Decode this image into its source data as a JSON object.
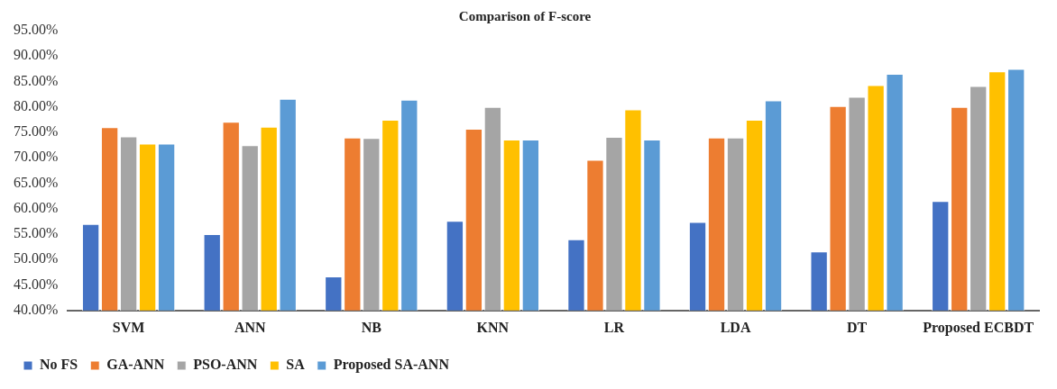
{
  "chart_data": {
    "type": "bar",
    "title": "Comparison of F-score",
    "categories": [
      "SVM",
      "ANN",
      "NB",
      "KNN",
      "LR",
      "LDA",
      "DT",
      "Proposed ECBDT"
    ],
    "series": [
      {
        "name": "No FS",
        "color": "#4472c4",
        "values": [
          57.0,
          55.0,
          46.7,
          57.6,
          54.0,
          57.4,
          51.6,
          61.5
        ]
      },
      {
        "name": "GA-ANN",
        "color": "#ed7d31",
        "values": [
          76.0,
          77.1,
          74.0,
          75.7,
          69.6,
          74.0,
          80.2,
          80.0
        ]
      },
      {
        "name": "PSO-ANN",
        "color": "#a5a5a5",
        "values": [
          74.2,
          72.5,
          73.9,
          80.0,
          74.1,
          74.0,
          82.0,
          84.1
        ]
      },
      {
        "name": "SA",
        "color": "#ffc000",
        "values": [
          72.8,
          76.1,
          77.5,
          73.6,
          79.5,
          77.5,
          84.3,
          87.0
        ]
      },
      {
        "name": "Proposed SA-ANN",
        "color": "#5b9bd5",
        "values": [
          72.8,
          81.6,
          81.4,
          73.6,
          73.6,
          81.3,
          86.5,
          87.5
        ]
      }
    ],
    "ylim": [
      40,
      95
    ],
    "yticks": [
      {
        "value": 40,
        "label": "40.00%"
      },
      {
        "value": 45,
        "label": "45.00%"
      },
      {
        "value": 50,
        "label": "50.00%"
      },
      {
        "value": 55,
        "label": "55.00%"
      },
      {
        "value": 60,
        "label": "60.00%"
      },
      {
        "value": 65,
        "label": "65.00%"
      },
      {
        "value": 70,
        "label": "70.00%"
      },
      {
        "value": 75,
        "label": "75.00%"
      },
      {
        "value": 80,
        "label": "80.00%"
      },
      {
        "value": 85,
        "label": "85.00%"
      },
      {
        "value": 90,
        "label": "90.00%"
      },
      {
        "value": 95,
        "label": "95.00%"
      }
    ],
    "grid": false,
    "legend": "bottom"
  }
}
